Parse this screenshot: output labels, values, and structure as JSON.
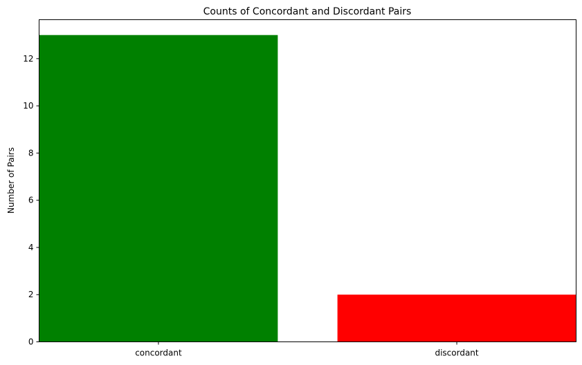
{
  "chart_data": {
    "type": "bar",
    "title": "Counts of Concordant and Discordant Pairs",
    "xlabel": "",
    "ylabel": "Number of Pairs",
    "categories": [
      "concordant",
      "discordant"
    ],
    "values": [
      13,
      2
    ],
    "colors": [
      "#008000",
      "#ff0000"
    ],
    "ylim": [
      0,
      13.65
    ],
    "yticks": [
      0,
      2,
      4,
      6,
      8,
      10,
      12
    ],
    "grid": false,
    "legend": "none"
  }
}
